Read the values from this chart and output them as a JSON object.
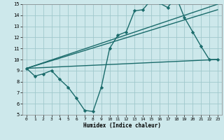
{
  "xlabel": "Humidex (Indice chaleur)",
  "xlim": [
    -0.5,
    23.5
  ],
  "ylim": [
    5,
    15
  ],
  "yticks": [
    5,
    6,
    7,
    8,
    9,
    10,
    11,
    12,
    13,
    14,
    15
  ],
  "xticks": [
    0,
    1,
    2,
    3,
    4,
    5,
    6,
    7,
    8,
    9,
    10,
    11,
    12,
    13,
    14,
    15,
    16,
    17,
    18,
    19,
    20,
    21,
    22,
    23
  ],
  "background_color": "#cde8eb",
  "grid_color": "#a0c8cc",
  "line_color": "#1a6b6b",
  "lines": [
    {
      "x": [
        0,
        1,
        2,
        3,
        4,
        5,
        6,
        7,
        8,
        9,
        10,
        11,
        12,
        13,
        14,
        15,
        16,
        17,
        18,
        19,
        20,
        21,
        22,
        23
      ],
      "y": [
        9.2,
        8.5,
        8.7,
        9.0,
        8.2,
        7.5,
        6.5,
        5.4,
        5.3,
        7.5,
        11.0,
        12.2,
        12.5,
        14.4,
        14.5,
        15.4,
        15.1,
        14.7,
        15.7,
        13.8,
        12.5,
        11.2,
        10.0,
        10.0
      ],
      "marker": "D",
      "ms": 2.2,
      "lw": 1.0
    },
    {
      "x": [
        0,
        23
      ],
      "y": [
        9.2,
        15.0
      ],
      "marker": null,
      "ms": 0,
      "lw": 1.0
    },
    {
      "x": [
        0,
        23
      ],
      "y": [
        9.2,
        14.5
      ],
      "marker": null,
      "ms": 0,
      "lw": 1.0
    },
    {
      "x": [
        0,
        23
      ],
      "y": [
        9.2,
        10.0
      ],
      "marker": null,
      "ms": 0,
      "lw": 1.0
    }
  ]
}
